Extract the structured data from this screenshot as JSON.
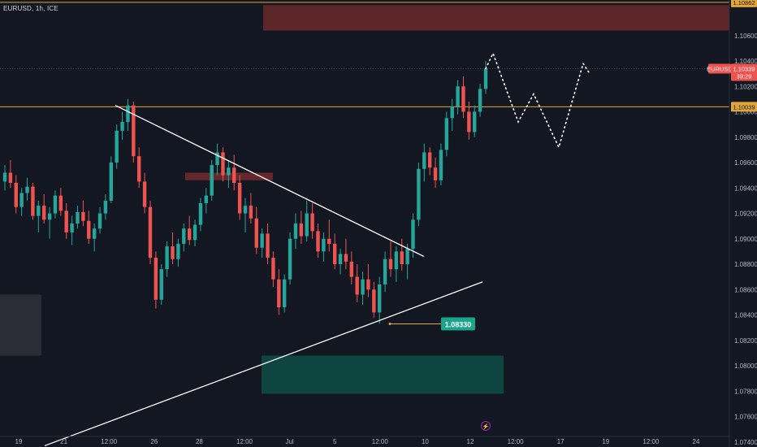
{
  "header": {
    "symbol_title": "EURUSD, 1h, ICE"
  },
  "colors": {
    "background": "#131722",
    "bull": "#26a69a",
    "bear": "#ef5350",
    "axis_text": "#b2b5be",
    "hline": "#e0a63a",
    "supply_zone": "#6b2a2c",
    "demand_zone": "#0f4a45",
    "trendline": "#ffffff",
    "low_badge": "#1aa58a"
  },
  "chart_data": {
    "type": "candlestick",
    "symbol": "EURUSD",
    "timeframe": "1h",
    "exchange": "ICE",
    "y_axis": {
      "ylim": [
        1.0736,
        1.1088
      ],
      "tick_labels": [
        "1.10600",
        "1.10400",
        "1.10200",
        "1.10000",
        "1.09800",
        "1.09600",
        "1.09400",
        "1.09200",
        "1.09000",
        "1.08800",
        "1.08600",
        "1.08400",
        "1.08200",
        "1.08000",
        "1.07800",
        "1.07600",
        "1.07400"
      ]
    },
    "x_axis": {
      "tick_labels": [
        "19",
        "21",
        "12:00",
        "26",
        "28",
        "12:00",
        "Jul",
        "5",
        "12:00",
        "10",
        "12",
        "12:00",
        "17",
        "19",
        "12:00",
        "24"
      ]
    },
    "price_tags": [
      {
        "label": "1.10862",
        "value": 1.10862,
        "kind": "horizontal-line"
      },
      {
        "label": "1.10039",
        "value": 1.10039,
        "kind": "horizontal-line"
      },
      {
        "label": "EURUSD",
        "value": 1.10339,
        "kind": "symbol"
      },
      {
        "label": "1.10339",
        "value": 1.10339,
        "kind": "last-price"
      },
      {
        "label": "39:29",
        "value": 1.10339,
        "kind": "countdown"
      }
    ],
    "annotations": [
      {
        "kind": "low-label",
        "text": "1.08330",
        "value": 1.0833
      }
    ],
    "candles_ohlc": [
      [
        1.0945,
        1.0958,
        1.0938,
        1.0952
      ],
      [
        1.0952,
        1.0962,
        1.094,
        1.0944
      ],
      [
        1.0944,
        1.095,
        1.092,
        1.0925
      ],
      [
        1.0925,
        1.094,
        1.0918,
        1.0936
      ],
      [
        1.0936,
        1.0948,
        1.093,
        1.0941
      ],
      [
        1.0941,
        1.0944,
        1.0915,
        1.0918
      ],
      [
        1.0918,
        1.093,
        1.0905,
        1.0926
      ],
      [
        1.0926,
        1.0935,
        1.0912,
        1.0915
      ],
      [
        1.0915,
        1.0925,
        1.09,
        1.092
      ],
      [
        1.092,
        1.0938,
        1.0916,
        1.0934
      ],
      [
        1.0934,
        1.094,
        1.0918,
        1.0922
      ],
      [
        1.0922,
        1.0928,
        1.09,
        1.0905
      ],
      [
        1.0905,
        1.0918,
        1.0895,
        1.0912
      ],
      [
        1.0912,
        1.0926,
        1.0908,
        1.0921
      ],
      [
        1.0921,
        1.093,
        1.091,
        1.0914
      ],
      [
        1.0914,
        1.0922,
        1.0896,
        1.09
      ],
      [
        1.09,
        1.0912,
        1.089,
        1.0908
      ],
      [
        1.0908,
        1.0925,
        1.0904,
        1.092
      ],
      [
        1.092,
        1.0935,
        1.0915,
        1.093
      ],
      [
        1.093,
        1.0965,
        1.0928,
        1.096
      ],
      [
        1.096,
        1.099,
        1.0955,
        1.0985
      ],
      [
        1.0985,
        1.1,
        1.0978,
        1.0992
      ],
      [
        1.0992,
        1.101,
        1.0985,
        1.1005
      ],
      [
        1.1005,
        1.1008,
        1.096,
        1.0965
      ],
      [
        1.0965,
        1.0972,
        1.094,
        1.0945
      ],
      [
        1.0945,
        1.0952,
        1.092,
        1.0925
      ],
      [
        1.0925,
        1.093,
        1.088,
        1.0885
      ],
      [
        1.0885,
        1.089,
        1.0845,
        1.0852
      ],
      [
        1.0852,
        1.088,
        1.0848,
        1.0876
      ],
      [
        1.0876,
        1.0898,
        1.087,
        1.0894
      ],
      [
        1.0894,
        1.0905,
        1.088,
        1.0884
      ],
      [
        1.0884,
        1.09,
        1.0878,
        1.0896
      ],
      [
        1.0896,
        1.0912,
        1.089,
        1.0908
      ],
      [
        1.0908,
        1.0918,
        1.0895,
        1.0899
      ],
      [
        1.0899,
        1.0915,
        1.0894,
        1.0911
      ],
      [
        1.0911,
        1.0932,
        1.0906,
        1.0928
      ],
      [
        1.0928,
        1.094,
        1.092,
        1.0934
      ],
      [
        1.0934,
        1.0962,
        1.093,
        1.0958
      ],
      [
        1.0958,
        1.0975,
        1.095,
        1.0968
      ],
      [
        1.0968,
        1.0972,
        1.0945,
        1.095
      ],
      [
        1.095,
        1.0962,
        1.094,
        1.0956
      ],
      [
        1.0956,
        1.0966,
        1.0938,
        1.0944
      ],
      [
        1.0944,
        1.095,
        1.0915,
        1.092
      ],
      [
        1.092,
        1.0932,
        1.0905,
        1.0926
      ],
      [
        1.0926,
        1.0936,
        1.0912,
        1.0916
      ],
      [
        1.0916,
        1.0925,
        1.0888,
        1.0893
      ],
      [
        1.0893,
        1.0908,
        1.0885,
        1.0904
      ],
      [
        1.0904,
        1.0912,
        1.088,
        1.0885
      ],
      [
        1.0885,
        1.089,
        1.0862,
        1.0868
      ],
      [
        1.0868,
        1.0876,
        1.084,
        1.0846
      ],
      [
        1.0846,
        1.0872,
        1.0842,
        1.0868
      ],
      [
        1.0868,
        1.0905,
        1.0864,
        1.09
      ],
      [
        1.09,
        1.092,
        1.0892,
        1.0912
      ],
      [
        1.0912,
        1.0922,
        1.0896,
        1.0902
      ],
      [
        1.0902,
        1.093,
        1.0898,
        1.092
      ],
      [
        1.092,
        1.0928,
        1.09,
        1.0906
      ],
      [
        1.0906,
        1.0912,
        1.0885,
        1.089
      ],
      [
        1.089,
        1.0905,
        1.0882,
        1.09
      ],
      [
        1.09,
        1.0915,
        1.089,
        1.0896
      ],
      [
        1.0896,
        1.0904,
        1.0876,
        1.088
      ],
      [
        1.088,
        1.0892,
        1.0872,
        1.0888
      ],
      [
        1.0888,
        1.09,
        1.0876,
        1.0882
      ],
      [
        1.0882,
        1.089,
        1.0864,
        1.087
      ],
      [
        1.087,
        1.088,
        1.085,
        1.0856
      ],
      [
        1.0856,
        1.0874,
        1.0848,
        1.0868
      ],
      [
        1.0868,
        1.088,
        1.0854,
        1.086
      ],
      [
        1.086,
        1.0866,
        1.0838,
        1.0842
      ],
      [
        1.0842,
        1.087,
        1.0833,
        1.0864
      ],
      [
        1.0864,
        1.089,
        1.0858,
        1.0884
      ],
      [
        1.0884,
        1.0898,
        1.087,
        1.0876
      ],
      [
        1.0876,
        1.0894,
        1.0866,
        1.089
      ],
      [
        1.089,
        1.09,
        1.0875,
        1.088
      ],
      [
        1.088,
        1.0896,
        1.0868,
        1.0892
      ],
      [
        1.0892,
        1.092,
        1.0885,
        1.0915
      ],
      [
        1.0915,
        1.096,
        1.091,
        1.0955
      ],
      [
        1.0955,
        1.0975,
        1.0945,
        1.0968
      ],
      [
        1.0968,
        1.0972,
        1.095,
        1.0956
      ],
      [
        1.0956,
        1.0964,
        1.094,
        1.0946
      ],
      [
        1.0946,
        1.0975,
        1.0942,
        1.097
      ],
      [
        1.097,
        1.1,
        1.0965,
        1.0995
      ],
      [
        1.0995,
        1.101,
        1.0985,
        1.1004
      ],
      [
        1.1004,
        1.1025,
        1.0998,
        1.102
      ],
      [
        1.102,
        1.1028,
        1.0995,
        1.1
      ],
      [
        1.1,
        1.1008,
        1.0978,
        1.0984
      ],
      [
        1.0984,
        1.1005,
        1.098,
        1.1
      ],
      [
        1.1,
        1.1022,
        1.0996,
        1.1018
      ],
      [
        1.1018,
        1.104,
        1.1014,
        1.1034
      ]
    ],
    "projection_path": [
      1.1034,
      1.1046,
      1.0992,
      1.1014,
      1.0972,
      1.1038,
      1.103
    ]
  }
}
